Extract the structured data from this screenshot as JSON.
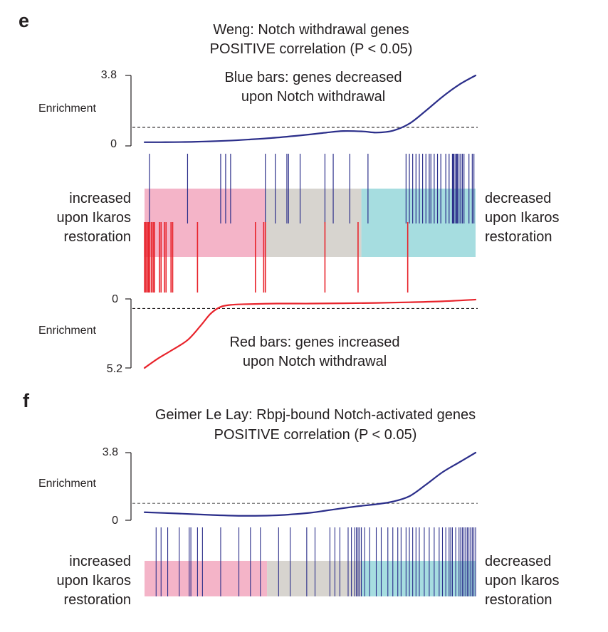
{
  "colors": {
    "blue": "#2b2e8a",
    "red": "#e8232b",
    "pink": "#f4b4c8",
    "gray": "#d7d4cf",
    "teal": "#a6dde0",
    "dashed": "#231f20"
  },
  "chart_data": [
    {
      "panel": "e",
      "type": "line",
      "title": "Weng: Notch withdrawal genes",
      "subtitle": "POSITIVE correlation (P < 0.05)",
      "ylabel": "Enrichment",
      "x_domain": [
        0,
        1
      ],
      "upper_plot": {
        "ylim": [
          0,
          3.8
        ],
        "tick_labels": [
          "3.8",
          "0"
        ],
        "threshold": 1.0,
        "annotation": [
          "Blue bars: genes decreased",
          "upon Notch withdrawal"
        ],
        "series": {
          "x": [
            0,
            0.05,
            0.15,
            0.25,
            0.32,
            0.4,
            0.5,
            0.55,
            0.6,
            0.66,
            0.7,
            0.75,
            0.8,
            0.85,
            0.9,
            0.95,
            1.0
          ],
          "y": [
            0.2,
            0.2,
            0.22,
            0.28,
            0.35,
            0.45,
            0.62,
            0.72,
            0.8,
            0.78,
            0.72,
            0.82,
            1.2,
            1.9,
            2.65,
            3.3,
            3.8
          ]
        }
      },
      "lower_plot": {
        "ylim": [
          0,
          5.2
        ],
        "tick_labels": [
          "0",
          "5.2"
        ],
        "threshold": 0.72,
        "annotation": [
          "Red bars: genes increased",
          "upon Notch withdrawal"
        ],
        "series": {
          "x": [
            0,
            0.04,
            0.08,
            0.13,
            0.17,
            0.2,
            0.23,
            0.26,
            0.3,
            0.4,
            0.5,
            0.6,
            0.7,
            0.8,
            0.9,
            1.0
          ],
          "y": [
            5.2,
            4.5,
            3.9,
            3.1,
            2.0,
            1.1,
            0.6,
            0.45,
            0.4,
            0.35,
            0.35,
            0.33,
            0.3,
            0.25,
            0.18,
            0.05
          ]
        }
      },
      "blue_bars": [
        0.015,
        0.13,
        0.23,
        0.245,
        0.26,
        0.365,
        0.395,
        0.43,
        0.435,
        0.47,
        0.545,
        0.57,
        0.62,
        0.675,
        0.79,
        0.8,
        0.81,
        0.82,
        0.83,
        0.84,
        0.85,
        0.86,
        0.865,
        0.875,
        0.885,
        0.895,
        0.91,
        0.92,
        0.93,
        0.9325,
        0.935,
        0.94,
        0.9425,
        0.945,
        0.95,
        0.955,
        0.96,
        0.965,
        0.98,
        0.99,
        0.995
      ],
      "red_bars": [
        0.0,
        0.004,
        0.008,
        0.012,
        0.016,
        0.021,
        0.026,
        0.03,
        0.045,
        0.05,
        0.06,
        0.065,
        0.08,
        0.085,
        0.16,
        0.335,
        0.36,
        0.365,
        0.545,
        0.645,
        0.795
      ],
      "regions": [
        {
          "color": "pink",
          "from": 0.0,
          "to": 0.365
        },
        {
          "color": "gray",
          "from": 0.365,
          "to": 0.655
        },
        {
          "color": "teal",
          "from": 0.655,
          "to": 1.0
        }
      ],
      "left_label": [
        "increased",
        "upon Ikaros",
        "restoration"
      ],
      "right_label": [
        "decreased",
        "upon Ikaros",
        "restoration"
      ]
    },
    {
      "panel": "f",
      "type": "line",
      "title": "Geimer Le Lay: Rbpj-bound Notch-activated genes",
      "subtitle": "POSITIVE correlation (P < 0.05)",
      "ylabel": "Enrichment",
      "x_domain": [
        0,
        1
      ],
      "upper_plot": {
        "ylim": [
          0,
          3.8
        ],
        "tick_labels": [
          "3.8",
          "0"
        ],
        "threshold": 0.95,
        "series": {
          "x": [
            0,
            0.1,
            0.2,
            0.3,
            0.4,
            0.5,
            0.55,
            0.6,
            0.65,
            0.7,
            0.75,
            0.8,
            0.85,
            0.9,
            0.95,
            1.0
          ],
          "y": [
            0.45,
            0.38,
            0.3,
            0.25,
            0.28,
            0.42,
            0.55,
            0.68,
            0.8,
            0.9,
            1.05,
            1.35,
            2.0,
            2.7,
            3.25,
            3.8
          ]
        }
      },
      "blue_bars": [
        0.035,
        0.05,
        0.07,
        0.105,
        0.135,
        0.14,
        0.16,
        0.175,
        0.23,
        0.285,
        0.32,
        0.35,
        0.405,
        0.44,
        0.49,
        0.515,
        0.56,
        0.575,
        0.59,
        0.615,
        0.625,
        0.635,
        0.64,
        0.645,
        0.65,
        0.655,
        0.665,
        0.68,
        0.7,
        0.715,
        0.735,
        0.75,
        0.765,
        0.775,
        0.79,
        0.8,
        0.81,
        0.82,
        0.83,
        0.845,
        0.86,
        0.875,
        0.89,
        0.9,
        0.91,
        0.92,
        0.925,
        0.93,
        0.94,
        0.95,
        0.955,
        0.96,
        0.965,
        0.97,
        0.975,
        0.98,
        0.985,
        0.99,
        0.995,
        1.0
      ],
      "regions": [
        {
          "color": "pink",
          "from": 0.0,
          "to": 0.37
        },
        {
          "color": "gray",
          "from": 0.37,
          "to": 0.655
        },
        {
          "color": "teal",
          "from": 0.655,
          "to": 1.0
        }
      ],
      "left_label": [
        "increased",
        "upon Ikaros",
        "restoration"
      ],
      "right_label": [
        "decreased",
        "upon Ikaros",
        "restoration"
      ]
    }
  ]
}
